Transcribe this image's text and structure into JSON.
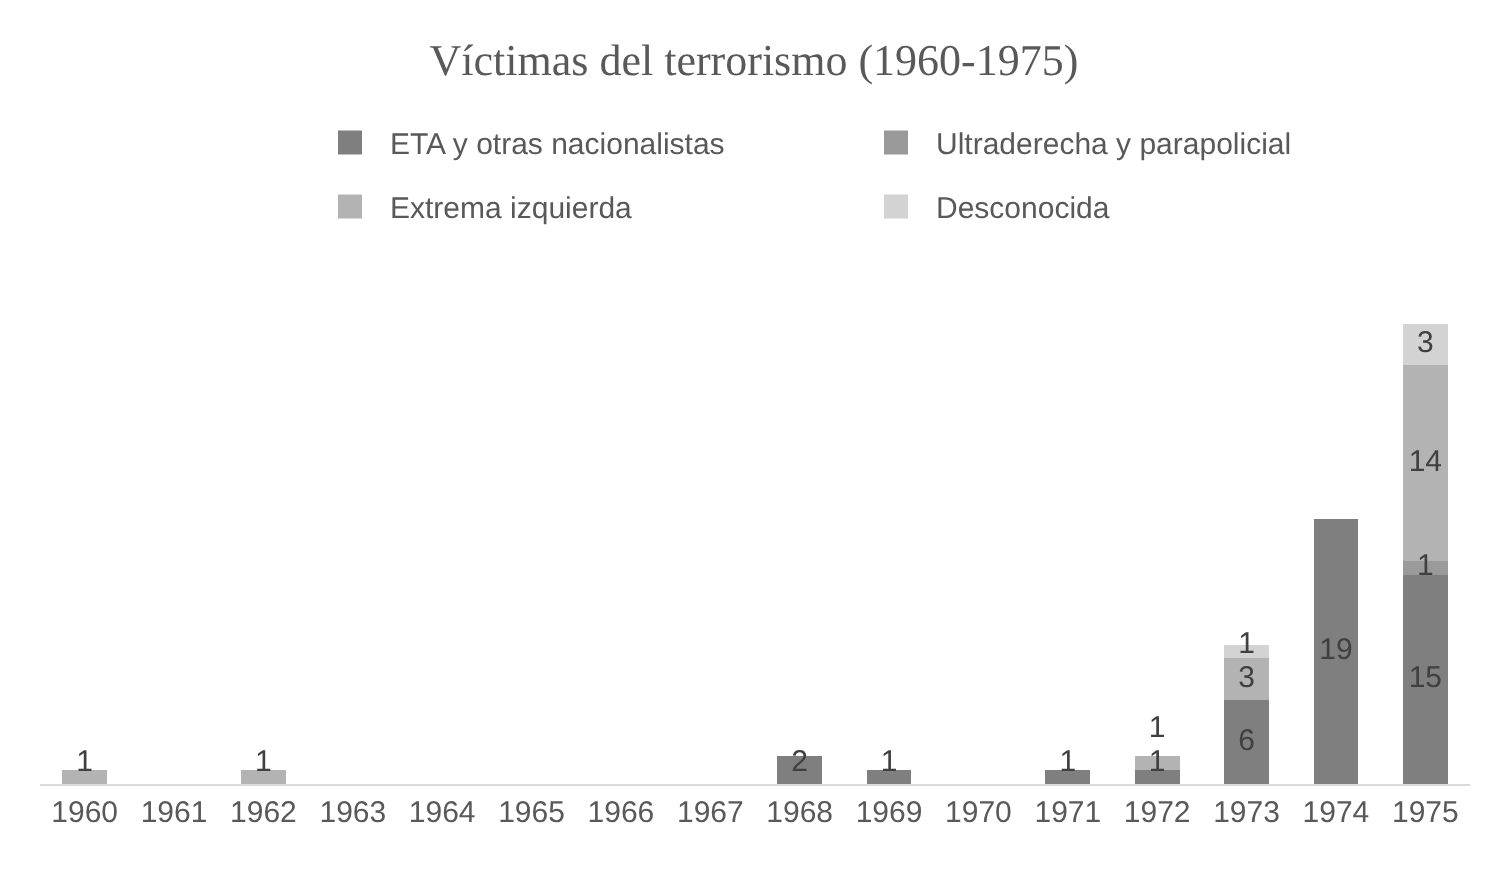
{
  "chart_data": {
    "type": "bar",
    "title": "Víctimas del terrorismo (1960-1975)",
    "stacked": true,
    "data_labels": true,
    "legend": "top",
    "categories": [
      "1960",
      "1961",
      "1962",
      "1963",
      "1964",
      "1965",
      "1966",
      "1967",
      "1968",
      "1969",
      "1970",
      "1971",
      "1972",
      "1973",
      "1974",
      "1975"
    ],
    "series": [
      {
        "name": "ETA y otras nacionalistas",
        "color": "#7f7f7f",
        "values": [
          null,
          null,
          null,
          null,
          null,
          null,
          null,
          null,
          2,
          1,
          null,
          1,
          1,
          6,
          19,
          15
        ]
      },
      {
        "name": "Ultraderecha y parapolicial",
        "color": "#9a9a9a",
        "values": [
          null,
          null,
          null,
          null,
          null,
          null,
          null,
          null,
          null,
          null,
          null,
          null,
          null,
          null,
          null,
          1
        ]
      },
      {
        "name": "Extrema izquierda",
        "color": "#b3b3b3",
        "values": [
          1,
          null,
          1,
          null,
          null,
          null,
          null,
          null,
          null,
          null,
          null,
          null,
          1,
          3,
          null,
          14
        ]
      },
      {
        "name": "Desconocida",
        "color": "#d3d3d3",
        "values": [
          null,
          null,
          null,
          null,
          null,
          null,
          null,
          null,
          null,
          null,
          null,
          null,
          null,
          1,
          null,
          3
        ]
      }
    ]
  }
}
